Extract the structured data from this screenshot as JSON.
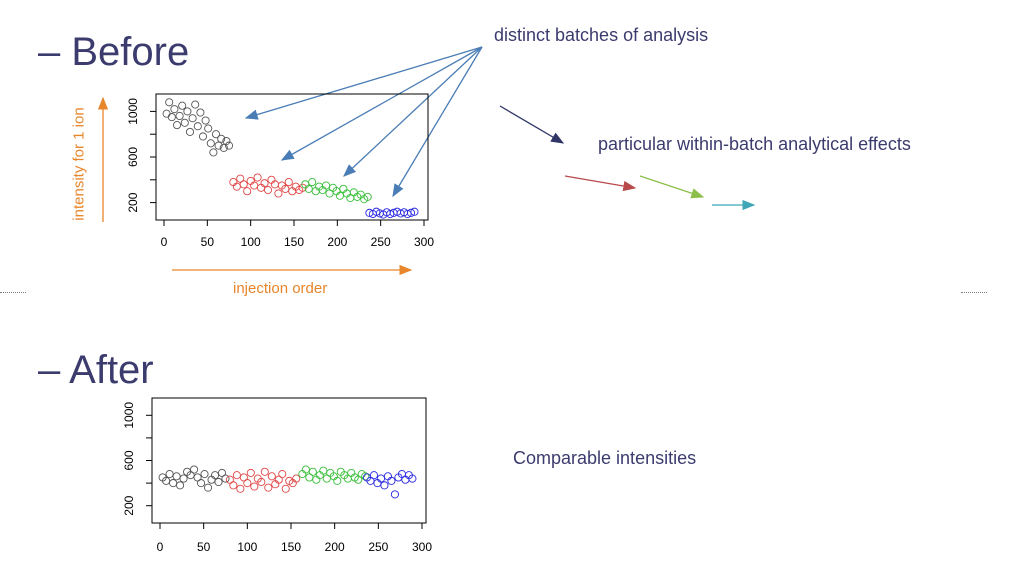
{
  "headings": {
    "before": "– Before",
    "after": "– After"
  },
  "annotations": {
    "batches": "distinct batches of analysis",
    "effects": "particular within-batch analytical effects",
    "comparable": "Comparable intensities"
  },
  "colors": {
    "text": "#3b3b6e",
    "orange": "#e8862b",
    "arrow_blue": "#4a7db5",
    "arrow_navy": "#2f3566",
    "arrow_red": "#b84a4a",
    "arrow_green": "#8cbf4a",
    "arrow_cyan": "#3fa6b8"
  },
  "chart_data": [
    {
      "type": "scatter",
      "xlabel": "injection order",
      "ylabel": "intensity for 1 ion",
      "xlim": [
        0,
        300
      ],
      "ylim": [
        100,
        1100
      ],
      "x_ticks": [
        "0",
        "50",
        "100",
        "150",
        "200",
        "250",
        "300"
      ],
      "y_ticks": [
        "200",
        "600",
        "1000"
      ],
      "series": [
        {
          "color": "#555555",
          "x": [
            3,
            6,
            9,
            12,
            15,
            18,
            21,
            24,
            27,
            30,
            33,
            36,
            39,
            42,
            45,
            48,
            51,
            54,
            57,
            60,
            63,
            66,
            69,
            72,
            75
          ],
          "y": [
            980,
            1080,
            950,
            1020,
            880,
            960,
            1050,
            900,
            1000,
            820,
            940,
            1060,
            870,
            990,
            780,
            920,
            850,
            720,
            640,
            800,
            700,
            760,
            680,
            740,
            700
          ]
        },
        {
          "color": "#e04646",
          "x": [
            80,
            84,
            88,
            92,
            96,
            100,
            104,
            108,
            112,
            116,
            120,
            124,
            128,
            132,
            136,
            140,
            144,
            148,
            152,
            156,
            160
          ],
          "y": [
            380,
            340,
            410,
            360,
            300,
            390,
            350,
            420,
            330,
            370,
            310,
            400,
            360,
            280,
            350,
            320,
            380,
            300,
            340,
            310,
            330
          ]
        },
        {
          "color": "#3bbf3b",
          "x": [
            163,
            167,
            171,
            175,
            179,
            183,
            187,
            191,
            195,
            199,
            203,
            207,
            211,
            215,
            219,
            223,
            227,
            231,
            235
          ],
          "y": [
            360,
            320,
            380,
            300,
            340,
            310,
            350,
            280,
            330,
            300,
            260,
            320,
            280,
            240,
            290,
            250,
            270,
            230,
            250
          ]
        },
        {
          "color": "#2a2ae0",
          "x": [
            237,
            241,
            245,
            249,
            253,
            257,
            261,
            265,
            269,
            273,
            277,
            281,
            285,
            289
          ],
          "y": [
            110,
            100,
            120,
            105,
            95,
            115,
            100,
            110,
            120,
            105,
            115,
            100,
            110,
            120
          ]
        }
      ]
    },
    {
      "type": "scatter",
      "xlabel": "",
      "ylabel": "",
      "xlim": [
        0,
        300
      ],
      "ylim": [
        100,
        1100
      ],
      "x_ticks": [
        "0",
        "50",
        "100",
        "150",
        "200",
        "250",
        "300"
      ],
      "y_ticks": [
        "200",
        "600",
        "1000"
      ],
      "series": [
        {
          "color": "#555555",
          "x": [
            3,
            7,
            11,
            15,
            19,
            23,
            27,
            31,
            35,
            39,
            43,
            47,
            51,
            55,
            59,
            63,
            67,
            71,
            75
          ],
          "y": [
            450,
            420,
            480,
            400,
            460,
            380,
            440,
            500,
            470,
            520,
            450,
            400,
            480,
            360,
            430,
            470,
            410,
            490,
            440
          ]
        },
        {
          "color": "#e04646",
          "x": [
            80,
            84,
            88,
            92,
            96,
            100,
            104,
            108,
            112,
            116,
            120,
            124,
            128,
            132,
            136,
            140,
            144,
            148,
            152,
            156
          ],
          "y": [
            430,
            380,
            470,
            350,
            450,
            400,
            490,
            370,
            440,
            410,
            500,
            360,
            460,
            390,
            430,
            480,
            350,
            420,
            400,
            440
          ]
        },
        {
          "color": "#3bbf3b",
          "x": [
            163,
            167,
            171,
            175,
            179,
            183,
            187,
            191,
            195,
            199,
            203,
            207,
            211,
            215,
            219,
            223,
            227,
            231,
            235
          ],
          "y": [
            480,
            520,
            450,
            500,
            430,
            470,
            510,
            440,
            490,
            460,
            420,
            500,
            470,
            440,
            490,
            450,
            430,
            480,
            460
          ]
        },
        {
          "color": "#2a2ae0",
          "x": [
            237,
            241,
            245,
            249,
            253,
            257,
            261,
            265,
            269,
            273,
            277,
            281,
            285,
            289
          ],
          "y": [
            450,
            420,
            470,
            400,
            440,
            380,
            460,
            420,
            300,
            450,
            480,
            430,
            470,
            440
          ]
        }
      ]
    }
  ]
}
